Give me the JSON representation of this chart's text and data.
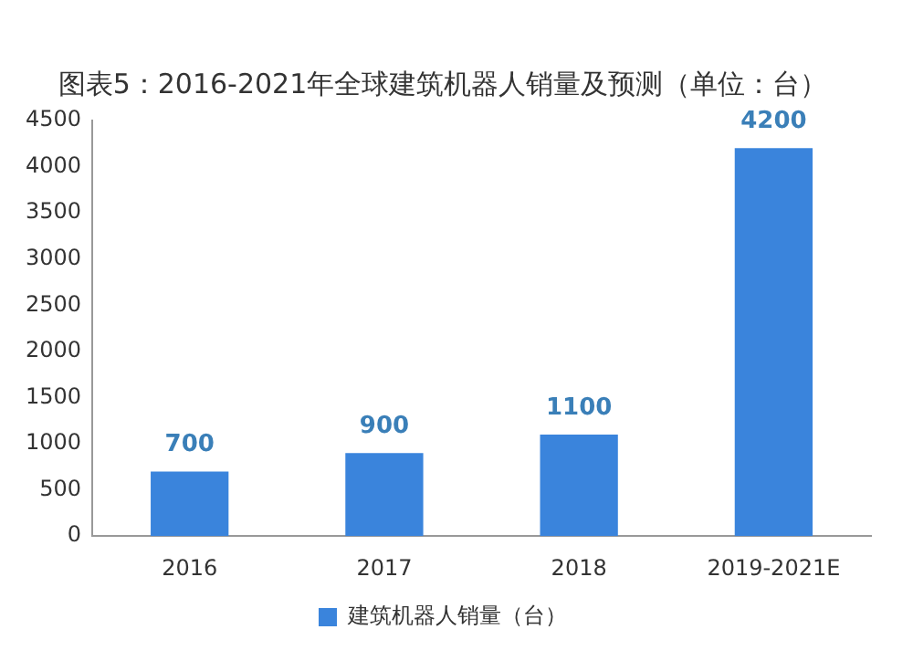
{
  "chart_data": {
    "type": "bar",
    "title": "图表5：2016-2021年全球建筑机器人销量及预测（单位：台）",
    "categories": [
      "2016",
      "2017",
      "2018",
      "2019-2021E"
    ],
    "series": [
      {
        "name": "建筑机器人销量（台）",
        "color": "#3a84dc",
        "values": [
          700,
          900,
          1100,
          4200
        ]
      }
    ],
    "ylim": [
      0,
      4500
    ],
    "yticks": [
      0,
      500,
      1000,
      1500,
      2000,
      2500,
      3000,
      3500,
      4000,
      4500
    ],
    "grid": false,
    "legend": "bottom",
    "data_labels": true
  }
}
